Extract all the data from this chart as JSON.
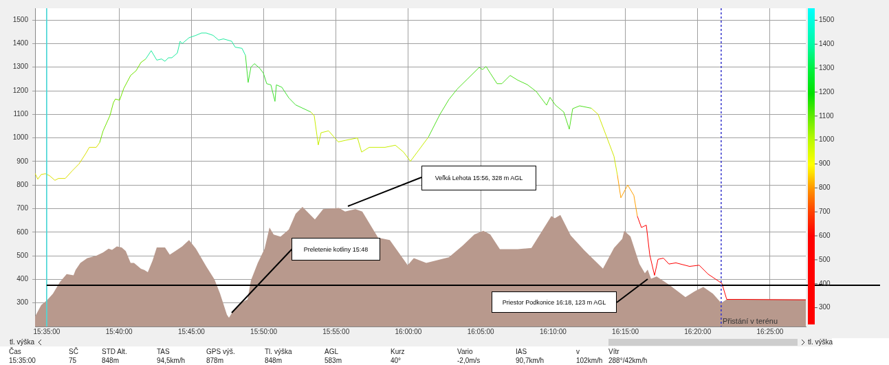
{
  "chart_data": {
    "type": "line",
    "xlim": [
      15.5699,
      16.4579
    ],
    "ylim": [
      200,
      1550
    ],
    "xticks": [
      {
        "value": 15.583333,
        "label": "15:35:00"
      },
      {
        "value": 15.666667,
        "label": "15:40:00"
      },
      {
        "value": 15.75,
        "label": "15:45:00"
      },
      {
        "value": 15.833333,
        "label": "15:50:00"
      },
      {
        "value": 15.916667,
        "label": "15:55:00"
      },
      {
        "value": 16,
        "label": "16:00:00"
      },
      {
        "value": 16.083333,
        "label": "16:05:00"
      },
      {
        "value": 16.166667,
        "label": "16:10:00"
      },
      {
        "value": 16.25,
        "label": "16:15:00"
      },
      {
        "value": 16.333333,
        "label": "16:20:00"
      },
      {
        "value": 16.416667,
        "label": "16:25:00"
      }
    ],
    "yticks": [
      300,
      400,
      500,
      600,
      700,
      800,
      900,
      1000,
      1100,
      1200,
      1300,
      1400,
      1500
    ],
    "clim": [
      230,
      1550
    ],
    "cticks": [
      300,
      400,
      500,
      600,
      700,
      800,
      900,
      1000,
      1100,
      1200,
      1300,
      1400,
      1500
    ],
    "grid": true,
    "legend": false,
    "marker": "none",
    "series": [
      {
        "type": "area",
        "color": "#b8998d",
        "x": [
          15.5699,
          15.577,
          15.5833,
          15.5905,
          15.5984,
          15.6063,
          15.6142,
          15.6166,
          15.6221,
          15.6301,
          15.6404,
          15.6483,
          15.6546,
          15.6586,
          15.6641,
          15.6697,
          15.6744,
          15.68,
          15.6839,
          15.6919,
          15.6958,
          15.6998,
          15.7053,
          15.7101,
          15.7196,
          15.7251,
          15.7315,
          15.7394,
          15.7473,
          15.7552,
          15.7671,
          15.7766,
          15.783,
          15.7909,
          15.7933,
          15.7988,
          15.8067,
          15.8147,
          15.8186,
          15.8265,
          15.8344,
          15.84,
          15.8448,
          15.8527,
          15.8622,
          15.8701,
          15.878,
          15.8923,
          15.9018,
          15.92,
          15.9271,
          15.939,
          15.9469,
          15.9651,
          15.9786,
          15.9992,
          16.0063,
          16.0206,
          16.0467,
          16.0626,
          16.0761,
          16.0864,
          16.0943,
          16.1054,
          16.126,
          16.1418,
          16.1648,
          16.1687,
          16.1751,
          16.187,
          16.2028,
          16.2242,
          16.2369,
          16.2464,
          16.2487,
          16.2559,
          16.2662,
          16.2725,
          16.2757,
          16.2796,
          16.286,
          16.3002,
          16.3192,
          16.3296,
          16.3398,
          16.3509,
          16.3604,
          16.3668,
          16.4579
        ],
        "values": [
          242,
          291,
          310,
          339,
          388,
          422,
          417,
          440,
          470,
          490,
          500,
          514,
          530,
          525,
          540,
          535,
          520,
          470,
          470,
          445,
          440,
          430,
          480,
          535,
          535,
          505,
          520,
          540,
          567,
          530,
          455,
          400,
          340,
          250,
          237,
          270,
          300,
          315,
          395,
          470,
          530,
          620,
          590,
          581,
          611,
          678,
          707,
          654,
          698,
          703,
          688,
          698,
          688,
          577,
          567,
          460,
          490,
          470,
          494,
          543,
          591,
          606,
          591,
          528,
          528,
          533,
          669,
          659,
          673,
          586,
          523,
          446,
          533,
          572,
          606,
          582,
          465,
          426,
          441,
          403,
          412,
          378,
          325,
          349,
          368,
          339,
          300,
          315,
          315
        ]
      },
      {
        "type": "line",
        "color": "#dce000",
        "x": [
          15.5699,
          15.573,
          15.577,
          15.5818,
          15.5865,
          15.5928,
          15.5968,
          15.6047,
          15.6126,
          15.6206,
          15.6285,
          15.6324,
          15.6404,
          15.6443
        ],
        "values": [
          850,
          825,
          845,
          848,
          840,
          820,
          828,
          828,
          860,
          890,
          935,
          960,
          960,
          980
        ]
      },
      {
        "type": "line",
        "color": "#70e400",
        "x": [
          15.6443,
          15.6483,
          15.6562,
          15.6602,
          15.6625,
          15.6673,
          15.6721,
          15.68,
          15.6863,
          15.6919,
          15.6974
        ],
        "values": [
          980,
          1030,
          1095,
          1150,
          1165,
          1160,
          1210,
          1265,
          1285,
          1320,
          1335
        ]
      },
      {
        "type": "line",
        "color": "#20eca0",
        "x": [
          15.6974,
          15.7037,
          15.7101,
          15.7156,
          15.7196,
          15.7235,
          15.7275,
          15.7338,
          15.737,
          15.7394,
          15.7473,
          15.7552,
          15.7616,
          15.7671,
          15.775,
          15.7814,
          15.7869,
          15.7964,
          15.8004,
          15.8083,
          15.8123
        ],
        "values": [
          1335,
          1370,
          1330,
          1335,
          1325,
          1340,
          1340,
          1360,
          1410,
          1400,
          1425,
          1435,
          1445,
          1445,
          1435,
          1415,
          1420,
          1410,
          1385,
          1380,
          1350
        ]
      },
      {
        "type": "line",
        "color": "#40e030",
        "x": [
          15.8123,
          15.8154,
          15.8186,
          15.8226,
          15.8289,
          15.8329,
          15.8368,
          15.8416,
          15.8463,
          15.8479,
          15.8542,
          15.8622,
          15.8701,
          15.8875
        ],
        "values": [
          1350,
          1235,
          1300,
          1315,
          1295,
          1275,
          1230,
          1225,
          1155,
          1225,
          1215,
          1170,
          1140,
          1110
        ]
      },
      {
        "type": "line",
        "color": "#c8ee00",
        "x": [
          15.8875,
          15.8915,
          15.8962,
          15.8994,
          15.9081,
          15.9152,
          15.9192,
          15.9279,
          15.9414,
          15.9461,
          15.9549,
          15.9731,
          15.985,
          15.9944,
          16.0024,
          16.0103,
          16.023
        ],
        "values": [
          1110,
          1095,
          970,
          1022,
          1030,
          1000,
          983,
          990,
          1000,
          940,
          960,
          960,
          969,
          940,
          901,
          940,
          1003
        ]
      },
      {
        "type": "line",
        "color": "#50e020",
        "x": [
          16.023,
          16.0364,
          16.0467,
          16.0562,
          16.0681,
          16.0816,
          16.0856,
          16.0895,
          16.0943,
          16.1022,
          16.1077,
          16.1172,
          16.126,
          16.137,
          16.1473,
          16.1592,
          16.1632,
          16.1695,
          16.179,
          16.1854,
          16.1893,
          16.1973,
          16.2107
        ],
        "values": [
          1003,
          1100,
          1163,
          1207,
          1250,
          1299,
          1290,
          1303,
          1275,
          1230,
          1230,
          1265,
          1245,
          1226,
          1197,
          1139,
          1172,
          1139,
          1110,
          1037,
          1124,
          1136,
          1126
        ]
      },
      {
        "type": "line",
        "color": "#d0e800",
        "x": [
          16.2107,
          16.2186,
          16.2289,
          16.2369,
          16.2408
        ],
        "values": [
          1126,
          1100,
          1000,
          922,
          843
        ]
      },
      {
        "type": "line",
        "color": "#ffa000",
        "x": [
          16.2408,
          16.2448,
          16.2527,
          16.2598,
          16.2638
        ],
        "values": [
          843,
          746,
          800,
          756,
          668
        ]
      },
      {
        "type": "line",
        "color": "#ff0000",
        "x": [
          16.2638,
          16.2685,
          16.2741,
          16.2781,
          16.2836,
          16.2876,
          16.2939,
          16.3002,
          16.3082,
          16.324,
          16.3351,
          16.3454,
          16.3612,
          16.3668,
          16.385,
          16.4579
        ],
        "values": [
          668,
          620,
          630,
          504,
          417,
          485,
          490,
          465,
          470,
          455,
          460,
          422,
          383,
          315,
          315,
          313
        ]
      }
    ],
    "ref_lines": [
      {
        "axis": "x",
        "value": 15.583333,
        "color": "#40e0e0"
      },
      {
        "axis": "y",
        "value": 375,
        "color": "#000000"
      },
      {
        "axis": "x",
        "value": 16.3604,
        "label": "Přistání v terénu",
        "color": "#3333cc",
        "line_style": "dashed"
      }
    ],
    "annotations": [
      "Preletenie kotliny 15:48",
      "Veľká Lehota 15:56,  328 m AGL",
      "Priestor Podkonice 16:18,  123 m AGL",
      "tl. výška",
      "tl. výška",
      "Čas",
      "SČ",
      "STD Alt.",
      "TAS",
      "GPS výš.",
      "Tl. výška",
      "AGL",
      "Kurz",
      "Vario",
      "IAS",
      "v",
      "Vítr",
      "15:35:00",
      "75",
      "848m",
      "94,5km/h",
      "878m",
      "848m",
      "583m",
      "40°",
      "-2,0m/s",
      "90,7km/h",
      "102km/h",
      "288°/42km/h"
    ]
  }
}
